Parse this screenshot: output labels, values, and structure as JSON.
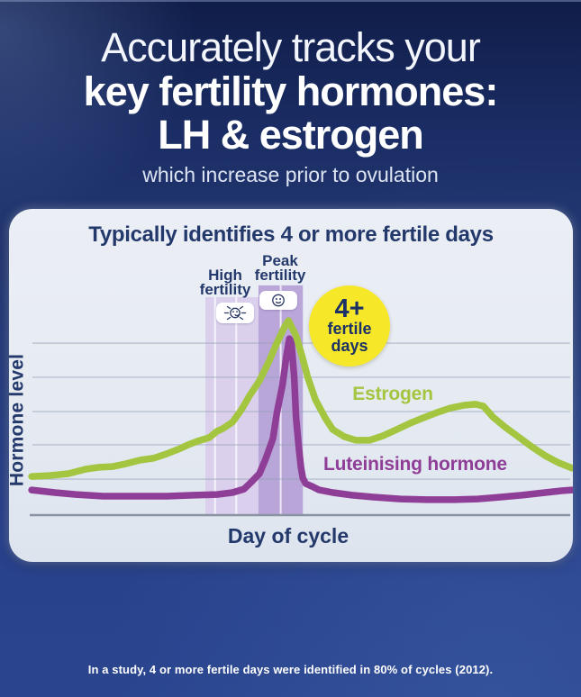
{
  "header": {
    "line1": "Accurately tracks your",
    "line2": "key fertility hormones:",
    "line3": "LH & estrogen",
    "subtitle": "which increase prior to ovulation"
  },
  "footer": {
    "note": "In a study, 4 or more fertile days were identified in 80% of cycles (2012)."
  },
  "colors": {
    "navy_text": "#24396b",
    "estrogen_green": "#a3c540",
    "lh_purple": "#8f3e97",
    "badge_yellow": "#f6e829",
    "high_band_purple": "#d9cdec",
    "peak_band_purple": "#b5a0d6"
  },
  "chart_data": {
    "type": "line",
    "title": "Typically identifies 4 or more fertile days",
    "xlabel": "Day of cycle",
    "ylabel": "Hormone level",
    "x_axis": {
      "unit": "day of cycle",
      "range": [
        0,
        28.2
      ],
      "tick_labels": "none"
    },
    "y_axis": {
      "unit": "relative hormone level",
      "range": [
        0,
        100
      ],
      "tick_labels": "none"
    },
    "grid": {
      "horizontal_gridlines_at_levels": [
        15.2,
        29.7,
        43.7,
        58.2,
        72.6
      ]
    },
    "legend_position": "labels-next-to-lines",
    "series": [
      {
        "name": "Estrogen",
        "color": "#a3c540",
        "points": [
          [
            0.1,
            16.3
          ],
          [
            1.0,
            16.7
          ],
          [
            2.0,
            17.5
          ],
          [
            2.9,
            19.4
          ],
          [
            3.6,
            20.2
          ],
          [
            4.3,
            20.5
          ],
          [
            5.0,
            21.7
          ],
          [
            5.7,
            23.2
          ],
          [
            6.4,
            24.0
          ],
          [
            7.1,
            25.9
          ],
          [
            7.7,
            27.8
          ],
          [
            8.3,
            30.0
          ],
          [
            8.7,
            31.2
          ],
          [
            9.3,
            32.7
          ],
          [
            9.7,
            35.4
          ],
          [
            10.0,
            36.5
          ],
          [
            10.5,
            39.2
          ],
          [
            11.0,
            44.9
          ],
          [
            11.4,
            50.6
          ],
          [
            11.9,
            56.7
          ],
          [
            12.4,
            65.0
          ],
          [
            12.8,
            72.6
          ],
          [
            13.2,
            79.5
          ],
          [
            13.4,
            82.1
          ],
          [
            13.8,
            75.7
          ],
          [
            14.1,
            67.3
          ],
          [
            14.4,
            58.2
          ],
          [
            14.8,
            48.7
          ],
          [
            15.3,
            41.1
          ],
          [
            15.7,
            36.1
          ],
          [
            16.3,
            33.1
          ],
          [
            16.9,
            31.6
          ],
          [
            17.6,
            31.6
          ],
          [
            18.3,
            33.5
          ],
          [
            19.0,
            36.1
          ],
          [
            19.7,
            38.8
          ],
          [
            20.4,
            41.1
          ],
          [
            21.1,
            43.3
          ],
          [
            21.8,
            45.2
          ],
          [
            22.5,
            46.4
          ],
          [
            23.1,
            46.8
          ],
          [
            23.5,
            46.0
          ],
          [
            24.0,
            41.4
          ],
          [
            24.6,
            37.3
          ],
          [
            25.3,
            33.1
          ],
          [
            26.0,
            28.9
          ],
          [
            26.7,
            25.1
          ],
          [
            27.4,
            22.1
          ],
          [
            28.1,
            19.8
          ]
        ]
      },
      {
        "name": "Luteinising hormone",
        "color": "#8f3e97",
        "points": [
          [
            0.1,
            10.6
          ],
          [
            1.3,
            9.5
          ],
          [
            2.4,
            8.7
          ],
          [
            3.8,
            8.0
          ],
          [
            5.5,
            8.0
          ],
          [
            7.1,
            8.0
          ],
          [
            8.5,
            8.4
          ],
          [
            9.7,
            8.7
          ],
          [
            10.5,
            9.5
          ],
          [
            11.1,
            11.0
          ],
          [
            11.5,
            14.1
          ],
          [
            11.9,
            17.5
          ],
          [
            12.2,
            23.2
          ],
          [
            12.6,
            32.3
          ],
          [
            12.8,
            43.0
          ],
          [
            13.1,
            55.1
          ],
          [
            13.3,
            67.3
          ],
          [
            13.45,
            74.5
          ],
          [
            13.55,
            73.4
          ],
          [
            13.7,
            58.2
          ],
          [
            13.8,
            41.1
          ],
          [
            13.95,
            27.8
          ],
          [
            14.05,
            20.2
          ],
          [
            14.15,
            15.6
          ],
          [
            14.3,
            13.3
          ],
          [
            14.6,
            12.2
          ],
          [
            15.0,
            10.6
          ],
          [
            15.7,
            9.5
          ],
          [
            16.7,
            8.4
          ],
          [
            17.8,
            7.6
          ],
          [
            19.2,
            6.8
          ],
          [
            20.6,
            6.5
          ],
          [
            22.0,
            6.5
          ],
          [
            23.2,
            6.8
          ],
          [
            24.4,
            7.6
          ],
          [
            25.5,
            8.4
          ],
          [
            26.7,
            9.5
          ],
          [
            27.6,
            10.3
          ],
          [
            28.1,
            10.6
          ]
        ]
      }
    ],
    "fertile_bands": [
      {
        "label_lines": [
          "High",
          "fertility"
        ],
        "from_day": 9.1,
        "to_day": 11.85,
        "top_level": 92,
        "color": "#d9cdec",
        "day_dividers": [
          9.6,
          10.7
        ],
        "icon": "sun-smiley"
      },
      {
        "label_lines": [
          "Peak",
          "fertility"
        ],
        "from_day": 11.85,
        "to_day": 14.15,
        "top_level": 97,
        "color": "#b5a0d6",
        "day_dividers": [
          13.0
        ],
        "icon": "smiley"
      }
    ],
    "badge": {
      "lines": [
        "4+",
        "fertile",
        "days"
      ],
      "color": "#f6e829",
      "text_color": "#1c3166",
      "center_day": 16.6,
      "center_level": 80
    }
  }
}
